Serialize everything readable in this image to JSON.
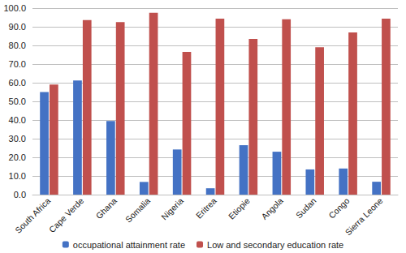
{
  "chart_data": {
    "type": "bar",
    "categories": [
      "South Africa",
      "Cape Verde",
      "Ghana",
      "Somalia",
      "Nigeria",
      "Eritrea",
      "Etiopie",
      "Angola",
      "Sudan",
      "Congo",
      "Sierra Leone"
    ],
    "series": [
      {
        "name": "occupational attainment rate",
        "color": "#4472c4",
        "values": [
          55.0,
          61.2,
          39.5,
          6.8,
          24.2,
          3.4,
          26.5,
          23.0,
          13.5,
          14.0,
          6.9
        ]
      },
      {
        "name": "Low and secondary education rate",
        "color": "#c0504d",
        "values": [
          59.0,
          93.6,
          92.5,
          97.5,
          76.5,
          94.3,
          83.5,
          94.0,
          79.0,
          87.0,
          94.3
        ]
      }
    ],
    "ylim": [
      0,
      100
    ],
    "yticks": [
      {
        "value": 0,
        "label": "0.0"
      },
      {
        "value": 10,
        "label": "10.0"
      },
      {
        "value": 20,
        "label": "20.0"
      },
      {
        "value": 30,
        "label": "30.0"
      },
      {
        "value": 40,
        "label": "40.0"
      },
      {
        "value": 50,
        "label": "50.0"
      },
      {
        "value": 60,
        "label": "60.0"
      },
      {
        "value": 70,
        "label": "70.0"
      },
      {
        "value": 80,
        "label": "80.0"
      },
      {
        "value": 90,
        "label": "90.0"
      },
      {
        "value": 100,
        "label": "100.0"
      }
    ],
    "grid": true,
    "legend": "bottom"
  }
}
